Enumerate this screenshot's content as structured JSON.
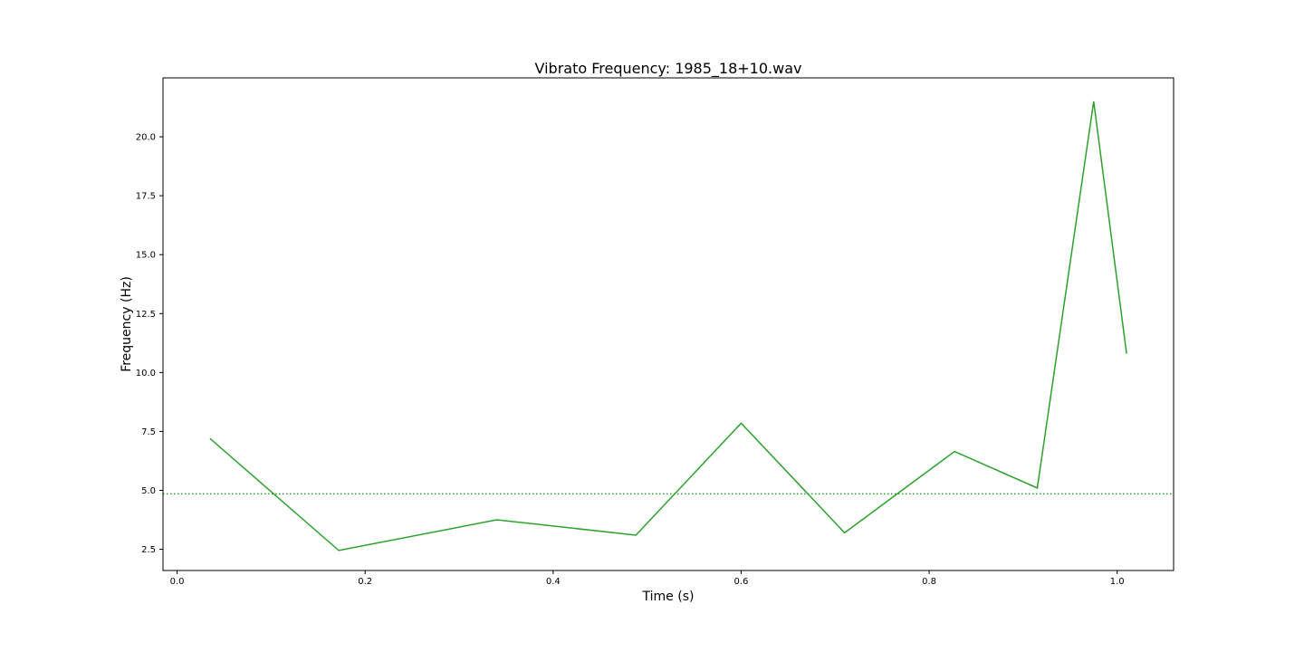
{
  "chart_data": {
    "type": "line",
    "title": "Vibrato Frequency: 1985_18+10.wav",
    "xlabel": "Time (s)",
    "ylabel": "Frequency (Hz)",
    "xlim": [
      -0.015,
      1.06
    ],
    "ylim": [
      1.6,
      22.5
    ],
    "xticks": [
      0.0,
      0.2,
      0.4,
      0.6,
      0.8,
      1.0
    ],
    "xtick_labels": [
      "0.0",
      "0.2",
      "0.4",
      "0.6",
      "0.8",
      "1.0"
    ],
    "yticks": [
      2.5,
      5.0,
      7.5,
      10.0,
      12.5,
      15.0,
      17.5,
      20.0
    ],
    "ytick_labels": [
      "2.5",
      "5.0",
      "7.5",
      "10.0",
      "12.5",
      "15.0",
      "17.5",
      "20.0"
    ],
    "grid": false,
    "series": [
      {
        "color": "#2ca02c",
        "style": "solid",
        "x": [
          0.035,
          0.172,
          0.34,
          0.488,
          0.6,
          0.71,
          0.827,
          0.915,
          0.975,
          1.01
        ],
        "y": [
          7.2,
          2.45,
          3.75,
          3.1,
          7.85,
          3.2,
          6.65,
          5.1,
          21.5,
          10.8
        ]
      }
    ],
    "reference_lines": [
      {
        "orientation": "horizontal",
        "y": 4.85,
        "color": "#2ca02c",
        "style": "dotted"
      }
    ]
  }
}
